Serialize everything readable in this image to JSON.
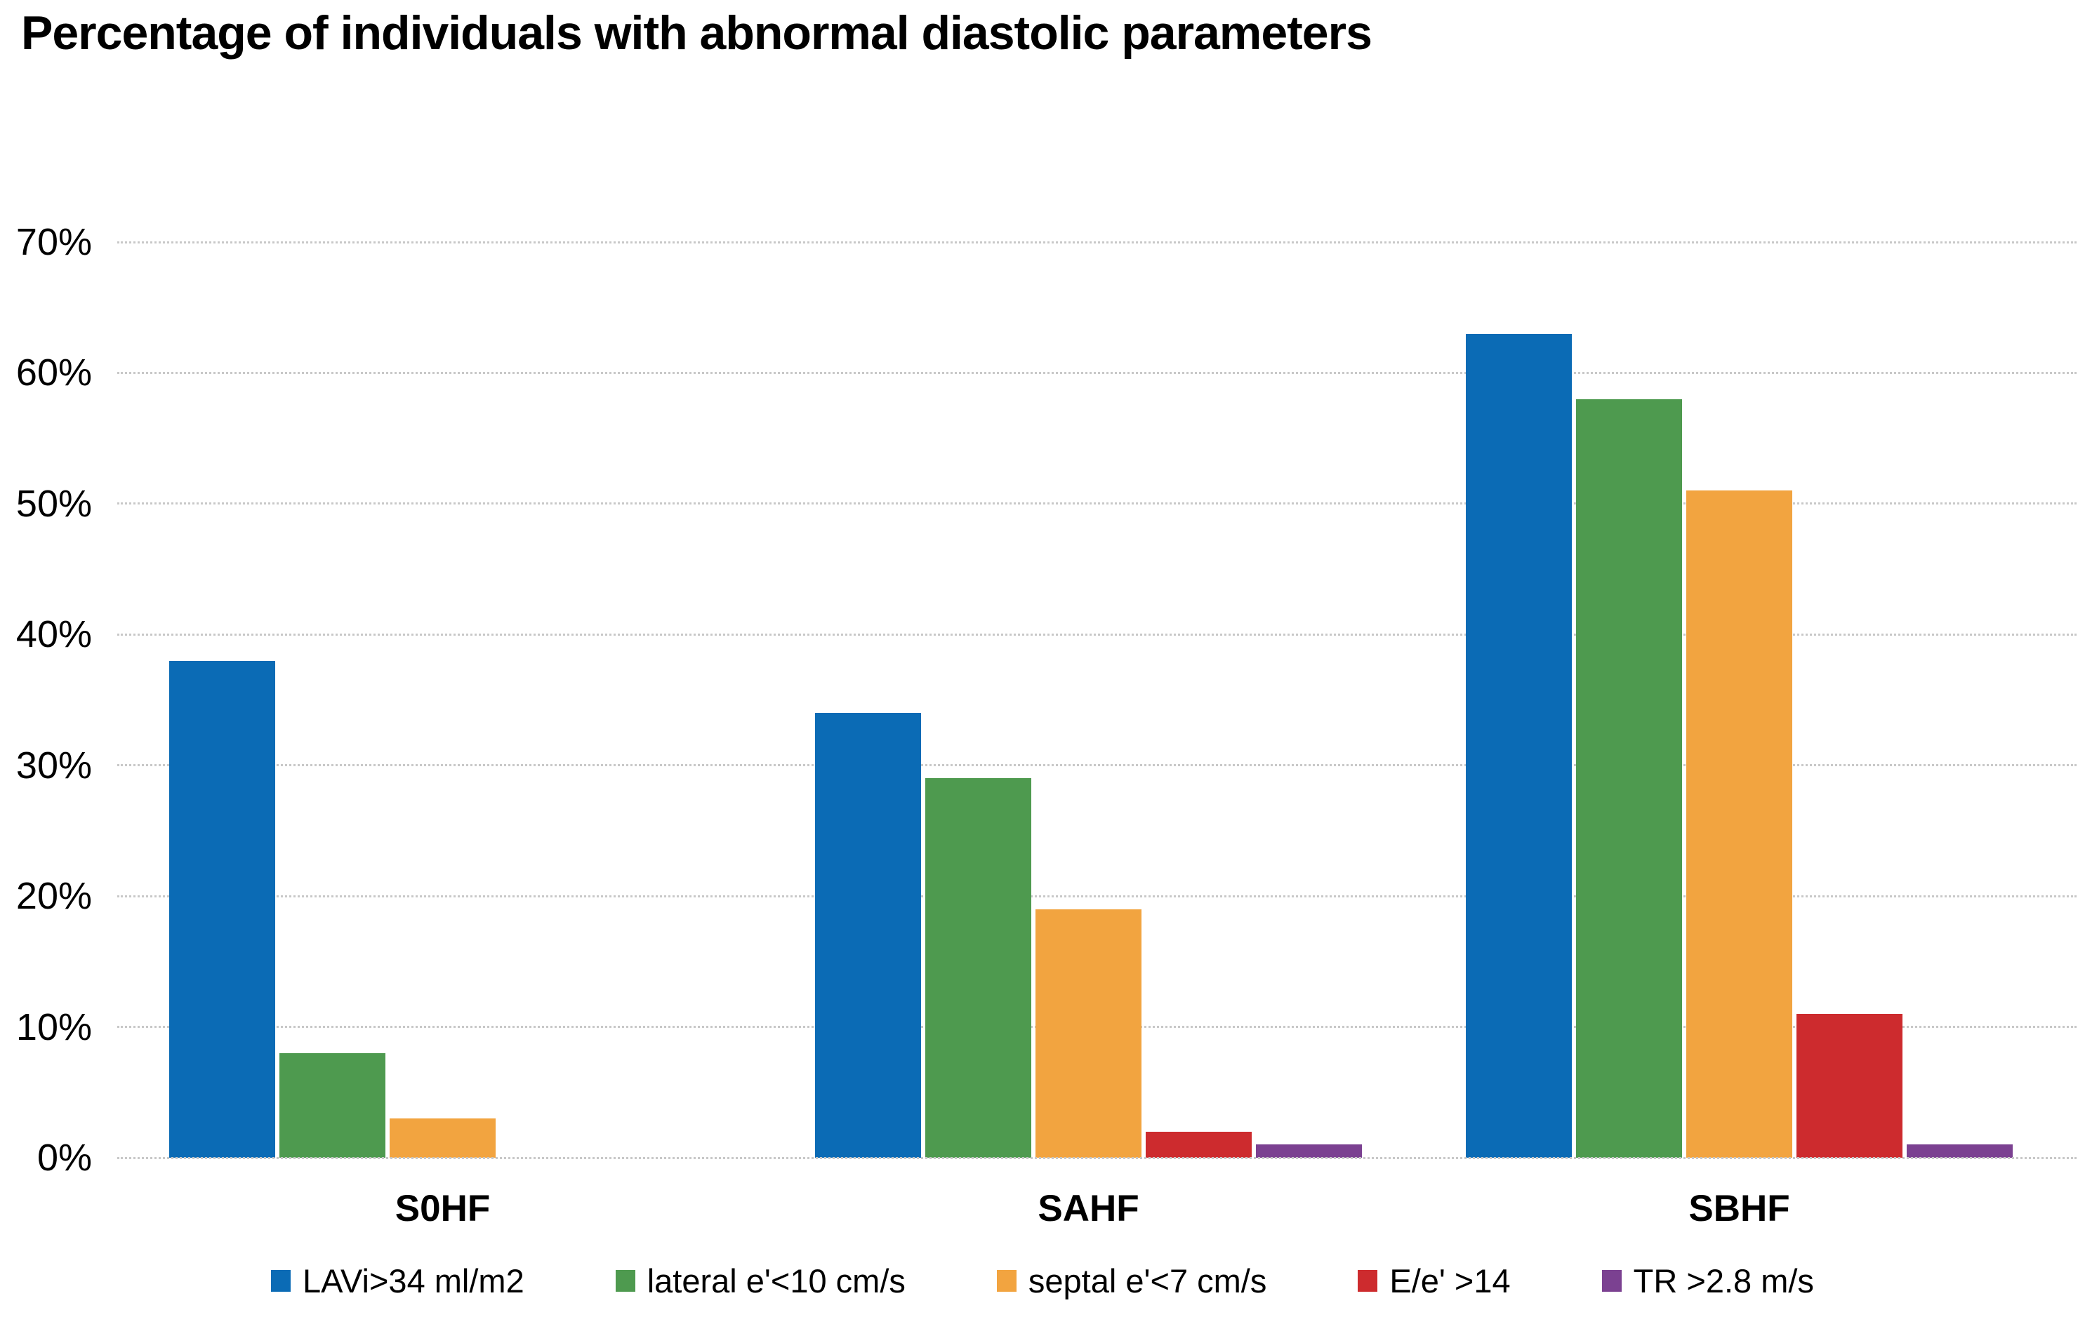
{
  "title": "Percentage of individuals with abnormal diastolic parameters",
  "colors": {
    "background": "#FFFFFF",
    "text": "#000000",
    "gridline": "#C8C8C8",
    "series_blue": "#0B6BB5",
    "series_green": "#4E9A4F",
    "series_orange": "#F2A440",
    "series_red": "#CD2B2E",
    "series_purple": "#7B4191"
  },
  "chart_data": {
    "type": "bar",
    "title": "Percentage of individuals with abnormal diastolic parameters",
    "categories": [
      "S0HF",
      "SAHF",
      "SBHF"
    ],
    "series": [
      {
        "name": "LAVi>34 ml/m2",
        "color": "#0B6BB5",
        "values": [
          38,
          34,
          63
        ]
      },
      {
        "name": "lateral e'<10 cm/s",
        "color": "#4E9A4F",
        "values": [
          8,
          29,
          58
        ]
      },
      {
        "name": "septal e'<7 cm/s",
        "color": "#F2A440",
        "values": [
          3,
          19,
          51
        ]
      },
      {
        "name": "E/e' >14",
        "color": "#CD2B2E",
        "values": [
          0,
          2,
          11
        ]
      },
      {
        "name": "TR >2.8 m/s",
        "color": "#7B4191",
        "values": [
          0,
          1,
          1
        ]
      }
    ],
    "ylim": [
      0,
      70
    ],
    "yticks": [
      0,
      10,
      20,
      30,
      40,
      50,
      60,
      70
    ],
    "ytick_suffix": "%",
    "xlabel": "",
    "ylabel": "",
    "grid": "horizontal dotted",
    "legend_position": "bottom"
  }
}
